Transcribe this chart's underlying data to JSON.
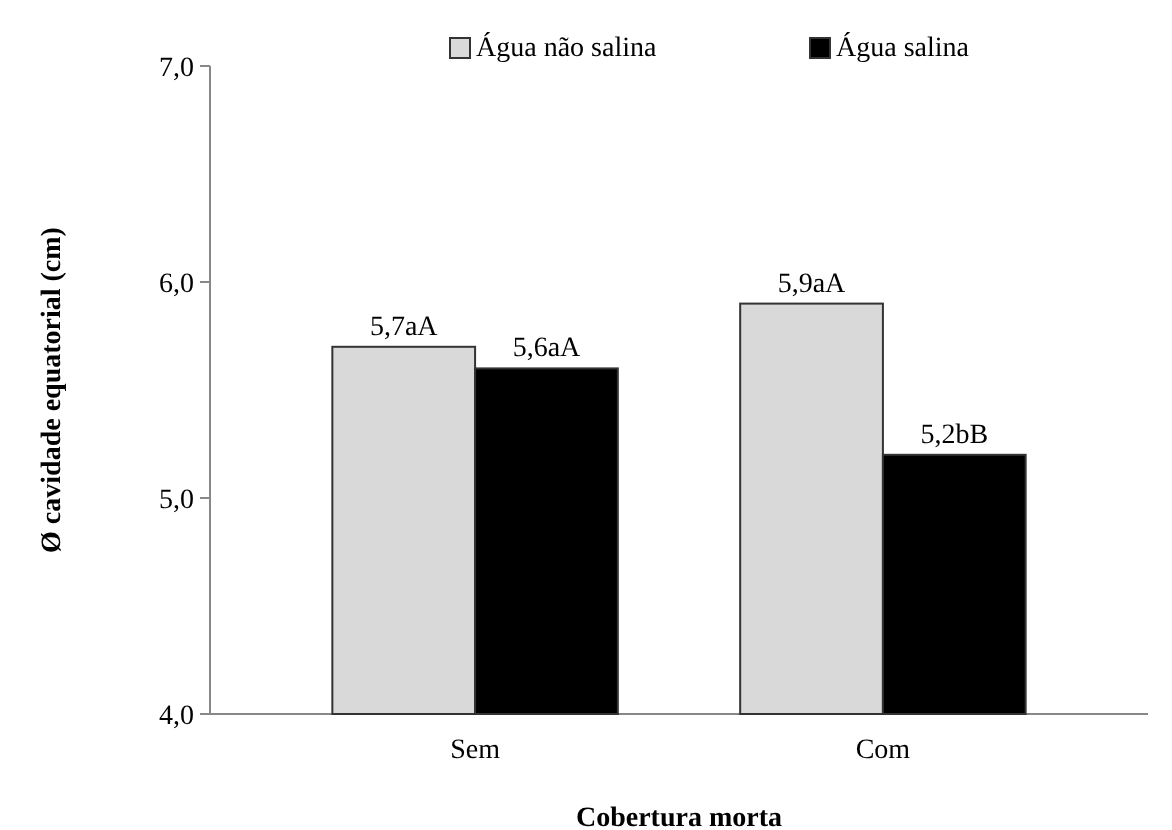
{
  "chart_data": {
    "type": "bar",
    "xlabel": "Cobertura morta",
    "ylabel": "Ø cavidade equatorial (cm)",
    "categories": [
      "Sem",
      "Com"
    ],
    "series": [
      {
        "name": "Água não salina",
        "color": "#d9d9d9",
        "values": [
          5.7,
          5.9
        ],
        "value_labels": [
          "5,7aA",
          "5,9aA"
        ]
      },
      {
        "name": "Água salina",
        "color": "#000000",
        "values": [
          5.6,
          5.2
        ],
        "value_labels": [
          "5,6aA",
          "5,2bB"
        ]
      }
    ],
    "ylim": [
      4,
      7
    ],
    "yticks": [
      {
        "value": 4,
        "label": "4,0"
      },
      {
        "value": 5,
        "label": "5,0"
      },
      {
        "value": 6,
        "label": "6,0"
      },
      {
        "value": 7,
        "label": "7,0"
      }
    ],
    "grid": false,
    "legend": "top"
  }
}
